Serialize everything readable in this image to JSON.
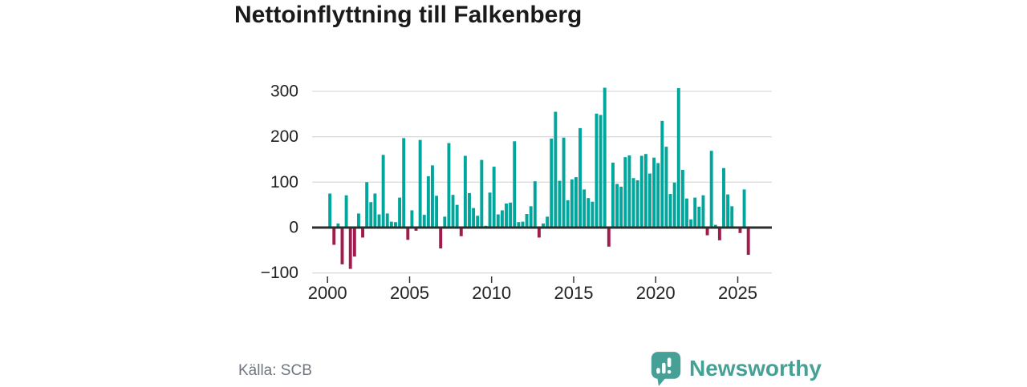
{
  "title": "Nettoinflyttning till Falkenberg",
  "footer": {
    "source": "Källa: SCB",
    "brand": "Newsworthy"
  },
  "colors": {
    "positive": "#00a59b",
    "negative": "#a31a4d",
    "brand": "#47a096",
    "axis": "#2e2e2e",
    "grid": "#dcdcdc",
    "text": "#222222",
    "muted": "#6f7680"
  },
  "chart_data": {
    "type": "bar",
    "title": "Nettoinflyttning till Falkenberg",
    "frequency": "quarterly",
    "start_period": "2000-Q1",
    "end_period": "2025-Q3",
    "values": [
      75,
      -38,
      9,
      -81,
      71,
      -91,
      -64,
      31,
      -22,
      100,
      56,
      75,
      29,
      160,
      31,
      13,
      12,
      66,
      197,
      -27,
      38,
      -7,
      193,
      28,
      113,
      137,
      70,
      -46,
      24,
      186,
      72,
      50,
      -19,
      158,
      76,
      43,
      26,
      149,
      4,
      77,
      134,
      29,
      38,
      53,
      55,
      190,
      12,
      13,
      30,
      47,
      102,
      -22,
      9,
      24,
      196,
      255,
      103,
      198,
      60,
      106,
      111,
      219,
      84,
      65,
      57,
      251,
      248,
      308,
      -42,
      143,
      96,
      90,
      155,
      159,
      109,
      104,
      158,
      162,
      119,
      154,
      142,
      235,
      178,
      74,
      99,
      307,
      127,
      64,
      18,
      66,
      46,
      71,
      -17,
      169,
      6,
      -28,
      131,
      73,
      47,
      0,
      -12,
      84,
      -60
    ],
    "x_tick_labels": [
      "2000",
      "2005",
      "2010",
      "2015",
      "2020",
      "2025"
    ],
    "y_tick_labels": [
      "300",
      "200",
      "100",
      "0",
      "−100"
    ],
    "ylim": [
      -110,
      320
    ],
    "grid": "horizontal",
    "legend": "none",
    "positive_color": "#00a59b",
    "negative_color": "#a31a4d",
    "source": "Källa: SCB"
  }
}
